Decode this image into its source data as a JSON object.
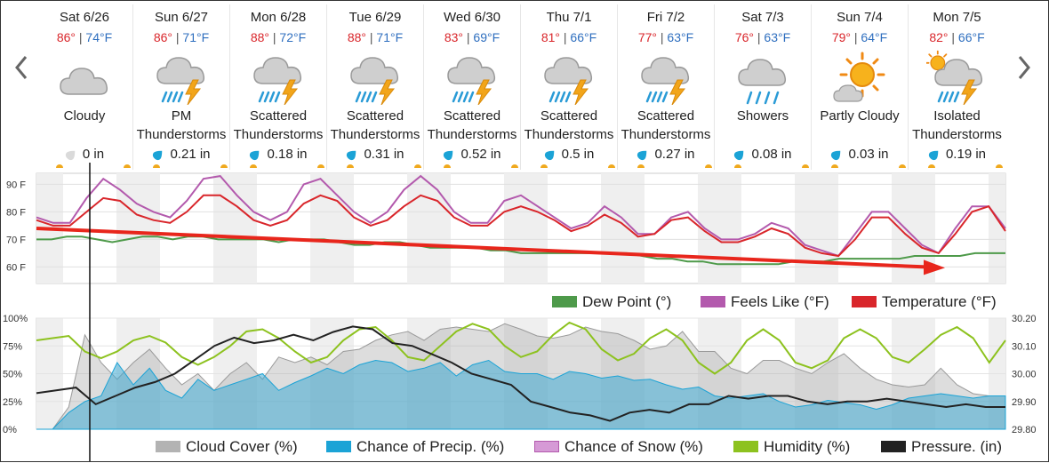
{
  "nav": {
    "prev_label": "‹",
    "next_label": "›"
  },
  "days": [
    {
      "name": "Sat 6/26",
      "hi": "86°",
      "lo": "74°F",
      "icon": "cloudy-icon",
      "cond": "Cloudy",
      "precip": "0 in",
      "drop": "gray"
    },
    {
      "name": "Sun 6/27",
      "hi": "86°",
      "lo": "71°F",
      "icon": "thunderstorm-icon",
      "cond": "PM Thunderstorms",
      "precip": "0.21 in",
      "drop": "blue"
    },
    {
      "name": "Mon 6/28",
      "hi": "88°",
      "lo": "72°F",
      "icon": "thunderstorm-icon",
      "cond": "Scattered Thunderstorms",
      "precip": "0.18 in",
      "drop": "blue"
    },
    {
      "name": "Tue 6/29",
      "hi": "88°",
      "lo": "71°F",
      "icon": "thunderstorm-icon",
      "cond": "Scattered Thunderstorms",
      "precip": "0.31 in",
      "drop": "blue"
    },
    {
      "name": "Wed 6/30",
      "hi": "83°",
      "lo": "69°F",
      "icon": "thunderstorm-icon",
      "cond": "Scattered Thunderstorms",
      "precip": "0.52 in",
      "drop": "blue"
    },
    {
      "name": "Thu 7/1",
      "hi": "81°",
      "lo": "66°F",
      "icon": "thunderstorm-icon",
      "cond": "Scattered Thunderstorms",
      "precip": "0.5 in",
      "drop": "blue"
    },
    {
      "name": "Fri 7/2",
      "hi": "77°",
      "lo": "63°F",
      "icon": "thunderstorm-icon",
      "cond": "Scattered Thunderstorms",
      "precip": "0.27 in",
      "drop": "blue"
    },
    {
      "name": "Sat 7/3",
      "hi": "76°",
      "lo": "63°F",
      "icon": "showers-icon",
      "cond": "Showers",
      "precip": "0.08 in",
      "drop": "blue"
    },
    {
      "name": "Sun 7/4",
      "hi": "79°",
      "lo": "64°F",
      "icon": "partly-cloudy-icon",
      "cond": "Partly Cloudy",
      "precip": "0.03 in",
      "drop": "blue"
    },
    {
      "name": "Mon 7/5",
      "hi": "82°",
      "lo": "66°F",
      "icon": "isolated-thunderstorm-icon",
      "cond": "Isolated Thunderstorms",
      "precip": "0.19 in",
      "drop": "blue"
    }
  ],
  "colors": {
    "temperature": "#d9262b",
    "feels_like": "#b35aad",
    "dew_point": "#4e9a4a",
    "cloud_cover": "#b3b3b3",
    "precip": "#1ba3d6",
    "snow": "#d69ad6",
    "humidity": "#8dc21f",
    "pressure": "#222222",
    "trend_arrow": "#e8261c"
  },
  "chart_data": [
    {
      "type": "line",
      "ylabels": [
        "90 F",
        "80 F",
        "70 F",
        "60 F"
      ],
      "ylim": [
        54,
        94
      ],
      "grid": true,
      "legend": "bottom-right",
      "series": [
        {
          "name": "Dew Point (°)",
          "key": "dew",
          "values": [
            70,
            70,
            71,
            71,
            70,
            69,
            70,
            71,
            71,
            70,
            71,
            71,
            70,
            70,
            70,
            70,
            69,
            70,
            70,
            70,
            69,
            68,
            68,
            69,
            69,
            68,
            67,
            67,
            67,
            67,
            66,
            66,
            65,
            65,
            65,
            65,
            65,
            65,
            65,
            65,
            64,
            63,
            63,
            62,
            62,
            61,
            61,
            61,
            61,
            61,
            62,
            62,
            62,
            63,
            63,
            63,
            63,
            63,
            64,
            64,
            64,
            64,
            65,
            65,
            65
          ]
        },
        {
          "name": "Feels Like (°F)",
          "key": "feels",
          "values": [
            78,
            76,
            76,
            85,
            92,
            88,
            83,
            80,
            78,
            84,
            92,
            93,
            86,
            80,
            77,
            80,
            90,
            92,
            86,
            80,
            76,
            80,
            88,
            93,
            88,
            80,
            76,
            76,
            84,
            86,
            82,
            78,
            74,
            76,
            82,
            78,
            72,
            72,
            78,
            80,
            74,
            70,
            70,
            72,
            76,
            74,
            68,
            66,
            64,
            72,
            80,
            80,
            74,
            68,
            65,
            74,
            82,
            82,
            74
          ]
        },
        {
          "name": "Temperature (°F)",
          "key": "temp",
          "values": [
            77,
            75,
            75,
            80,
            85,
            84,
            79,
            77,
            76,
            80,
            86,
            86,
            82,
            77,
            75,
            77,
            83,
            86,
            84,
            78,
            75,
            77,
            82,
            86,
            84,
            78,
            75,
            75,
            80,
            82,
            80,
            77,
            73,
            75,
            79,
            76,
            71,
            72,
            77,
            78,
            73,
            69,
            69,
            71,
            74,
            72,
            67,
            65,
            64,
            70,
            78,
            78,
            72,
            67,
            65,
            72,
            80,
            82,
            73
          ]
        }
      ],
      "trend_arrow": {
        "from": [
          0,
          74
        ],
        "to": [
          100,
          60
        ]
      }
    },
    {
      "type": "area",
      "ylabels_left": [
        "100%",
        "75%",
        "50%",
        "25%",
        "0%"
      ],
      "ylabels_right": [
        "30.20",
        "30.10",
        "30.00",
        "29.90",
        "29.80"
      ],
      "ylim_left": [
        0,
        100
      ],
      "ylim_right": [
        29.8,
        30.2
      ],
      "grid": true,
      "legend": "bottom-right",
      "series": [
        {
          "name": "Cloud Cover (%)",
          "key": "cloud",
          "values": [
            0,
            0,
            20,
            85,
            60,
            45,
            60,
            72,
            55,
            40,
            50,
            35,
            50,
            60,
            45,
            65,
            60,
            65,
            58,
            70,
            72,
            80,
            85,
            88,
            80,
            90,
            92,
            90,
            88,
            95,
            90,
            84,
            82,
            85,
            92,
            88,
            86,
            80,
            72,
            75,
            88,
            70,
            70,
            55,
            50,
            62,
            62,
            55,
            50,
            60,
            68,
            55,
            45,
            40,
            38,
            40,
            55,
            40,
            32,
            30,
            30
          ]
        },
        {
          "name": "Chance of Precip. (%)",
          "key": "precip",
          "values": [
            0,
            0,
            15,
            25,
            30,
            60,
            40,
            55,
            35,
            28,
            45,
            35,
            40,
            45,
            50,
            35,
            42,
            48,
            55,
            50,
            58,
            62,
            60,
            52,
            55,
            60,
            48,
            58,
            62,
            52,
            50,
            50,
            45,
            52,
            50,
            46,
            48,
            44,
            45,
            40,
            36,
            38,
            30,
            28,
            30,
            32,
            25,
            20,
            22,
            26,
            24,
            22,
            18,
            22,
            28,
            30,
            32,
            30,
            28,
            30,
            30
          ]
        },
        {
          "name": "Chance of Snow (%)",
          "key": "snow",
          "values": []
        },
        {
          "name": "Humidity (%)",
          "key": "humidity",
          "values": [
            80,
            82,
            84,
            70,
            64,
            70,
            80,
            84,
            78,
            65,
            58,
            65,
            75,
            88,
            90,
            82,
            70,
            60,
            65,
            80,
            90,
            92,
            80,
            65,
            62,
            75,
            88,
            95,
            90,
            75,
            65,
            70,
            85,
            96,
            90,
            72,
            62,
            68,
            82,
            90,
            80,
            60,
            50,
            60,
            80,
            90,
            80,
            60,
            55,
            62,
            82,
            90,
            82,
            65,
            60,
            72,
            85,
            92,
            82,
            60,
            80
          ]
        },
        {
          "name": "Pressure. (in)",
          "key": "pressure",
          "values": [
            29.93,
            29.94,
            29.95,
            29.89,
            29.92,
            29.95,
            29.97,
            30.0,
            30.05,
            30.1,
            30.13,
            30.11,
            30.12,
            30.14,
            30.12,
            30.15,
            30.17,
            30.16,
            30.11,
            30.1,
            30.07,
            30.04,
            30.0,
            29.98,
            29.96,
            29.9,
            29.88,
            29.86,
            29.85,
            29.83,
            29.86,
            29.87,
            29.86,
            29.89,
            29.89,
            29.92,
            29.91,
            29.92,
            29.92,
            29.9,
            29.89,
            29.9,
            29.9,
            29.91,
            29.9,
            29.89,
            29.88,
            29.89,
            29.88,
            29.88
          ]
        }
      ]
    }
  ]
}
